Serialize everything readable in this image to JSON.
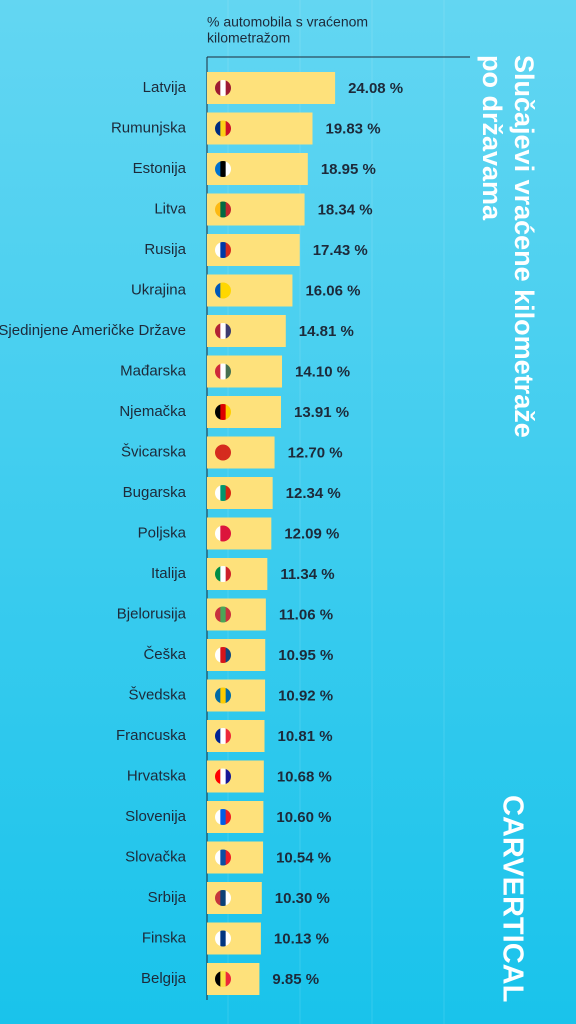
{
  "chart_data": {
    "type": "bar",
    "orientation": "horizontal",
    "title": [
      "Slučajevi vraćene kilometraže",
      "po državama"
    ],
    "value_axis_label": [
      "% automobila s vraćenom",
      "kilometražom"
    ],
    "brand": "CARVERTICAL",
    "color": "#fee17b",
    "categories": [
      "Latvija",
      "Rumunjska",
      "Estonija",
      "Litva",
      "Rusija",
      "Ukrajina",
      "Sjedinjene Američke Države",
      "Mađarska",
      "Njemačka",
      "Švicarska",
      "Bugarska",
      "Poljska",
      "Italija",
      "Bjelorusija",
      "Češka",
      "Švedska",
      "Francuska",
      "Hrvatska",
      "Slovenija",
      "Slovačka",
      "Srbija",
      "Finska",
      "Belgija"
    ],
    "values": [
      24.08,
      19.83,
      18.95,
      18.34,
      17.43,
      16.06,
      14.81,
      14.1,
      13.91,
      12.7,
      12.34,
      12.09,
      11.34,
      11.06,
      10.95,
      10.92,
      10.81,
      10.68,
      10.6,
      10.54,
      10.3,
      10.13,
      9.85
    ],
    "value_labels": [
      "24.08 %",
      "19.83 %",
      "18.95 %",
      "18.34 %",
      "17.43 %",
      "16.06 %",
      "14.81 %",
      "14.10 %",
      "13.91 %",
      "12.70 %",
      "12.34 %",
      "12.09 %",
      "11.34 %",
      "11.06 %",
      "10.95 %",
      "10.92 %",
      "10.81 %",
      "10.68 %",
      "10.60 %",
      "10.54 %",
      "10.30 %",
      "10.13 %",
      "9.85 %"
    ]
  }
}
